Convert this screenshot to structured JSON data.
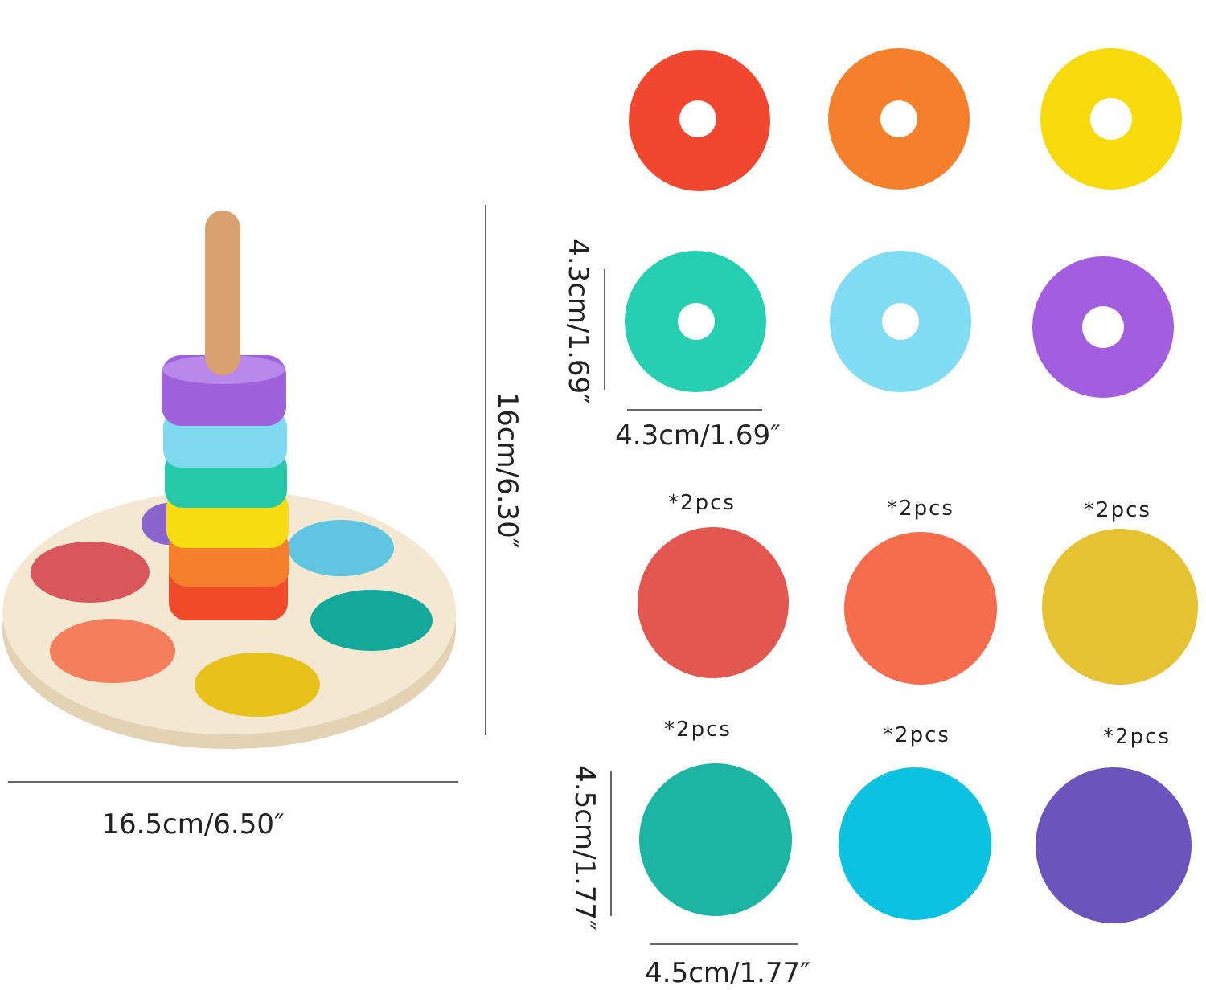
{
  "dimensions": {
    "base_width": "16.5cm/6.50″",
    "tower_height": "16cm/6.30″",
    "ring_height": "4.3cm/1.69″",
    "ring_width": "4.3cm/1.69″",
    "disc_height": "4.5cm/1.77″",
    "disc_width": "4.5cm/1.77″"
  },
  "disc_labels": [
    "*2pcs",
    "*2pcs",
    "*2pcs",
    "*2pcs",
    "*2pcs",
    "*2pcs"
  ]
}
